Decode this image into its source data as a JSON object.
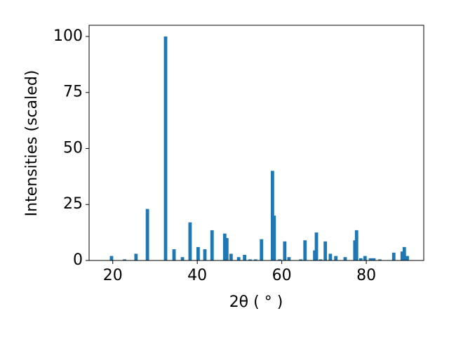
{
  "chart_data": {
    "type": "bar",
    "color": "#1f77b4",
    "xlabel": "2θ ( ° )",
    "ylabel": "Intensities (scaled)",
    "x": [
      19.7,
      22.8,
      25.5,
      28.2,
      32.5,
      34.5,
      36.5,
      38.3,
      40.2,
      41.8,
      43.5,
      46.5,
      47.0,
      48.0,
      49.8,
      51.2,
      52.5,
      53.8,
      55.2,
      57.8,
      58.2,
      59.5,
      60.7,
      61.7,
      64.5,
      65.5,
      67.8,
      68.2,
      69.2,
      70.3,
      71.5,
      72.8,
      75.0,
      77.3,
      77.7,
      78.7,
      79.7,
      81.0,
      81.8,
      83.2,
      86.5,
      88.5,
      89.0,
      89.7
    ],
    "values": [
      2,
      0.5,
      3,
      23,
      100,
      5,
      1.5,
      17,
      6,
      5,
      13.5,
      12,
      10,
      3,
      1.5,
      2.5,
      0.5,
      0.5,
      9.5,
      40,
      20,
      0.5,
      8.5,
      1.5,
      0.5,
      9,
      4.5,
      12.5,
      0.5,
      8.5,
      3,
      2,
      1.5,
      9,
      13.5,
      1,
      2,
      1,
      1,
      0.5,
      3.5,
      4,
      6,
      2
    ],
    "xlim": [
      14.4,
      93.6
    ],
    "ylim": [
      0,
      105
    ],
    "xticks": [
      20,
      40,
      60,
      80
    ],
    "yticks": [
      0,
      25,
      50,
      75,
      100
    ]
  }
}
